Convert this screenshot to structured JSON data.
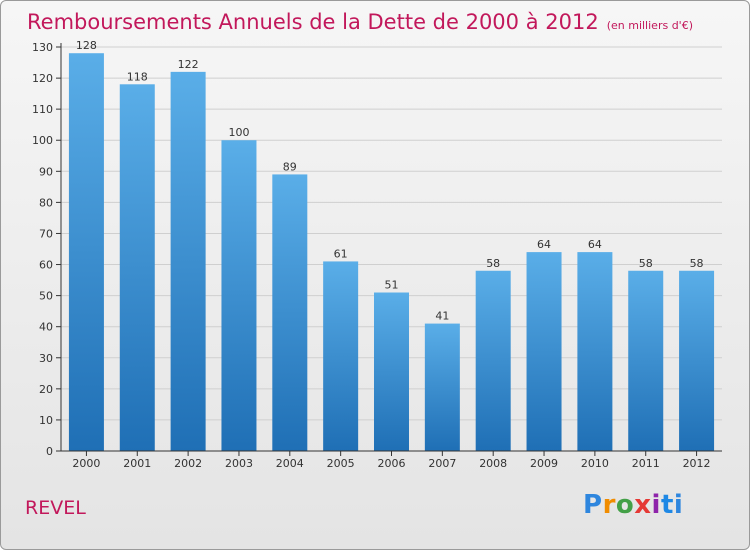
{
  "title": "Remboursements Annuels de la Dette de 2000 à 2012",
  "title_unit": "(en milliers d'€)",
  "commune": "REVEL",
  "logo": [
    "P",
    "r",
    "o",
    "x",
    "i",
    "t",
    "i"
  ],
  "colors": {
    "title": "#c2185b",
    "bar_top": "#5aaee8",
    "bar_bottom": "#1f6fb5",
    "axis": "#333333",
    "grid": "#cfcfcf"
  },
  "chart_data": {
    "type": "bar",
    "categories": [
      "2000",
      "2001",
      "2002",
      "2003",
      "2004",
      "2005",
      "2006",
      "2007",
      "2008",
      "2009",
      "2010",
      "2011",
      "2012"
    ],
    "values": [
      128,
      118,
      122,
      100,
      89,
      61,
      51,
      41,
      58,
      64,
      64,
      58,
      58
    ],
    "ylim": [
      0,
      130
    ],
    "ytick_step": 10,
    "xlabel": "",
    "ylabel": "",
    "grid": true,
    "data_labels": true
  }
}
